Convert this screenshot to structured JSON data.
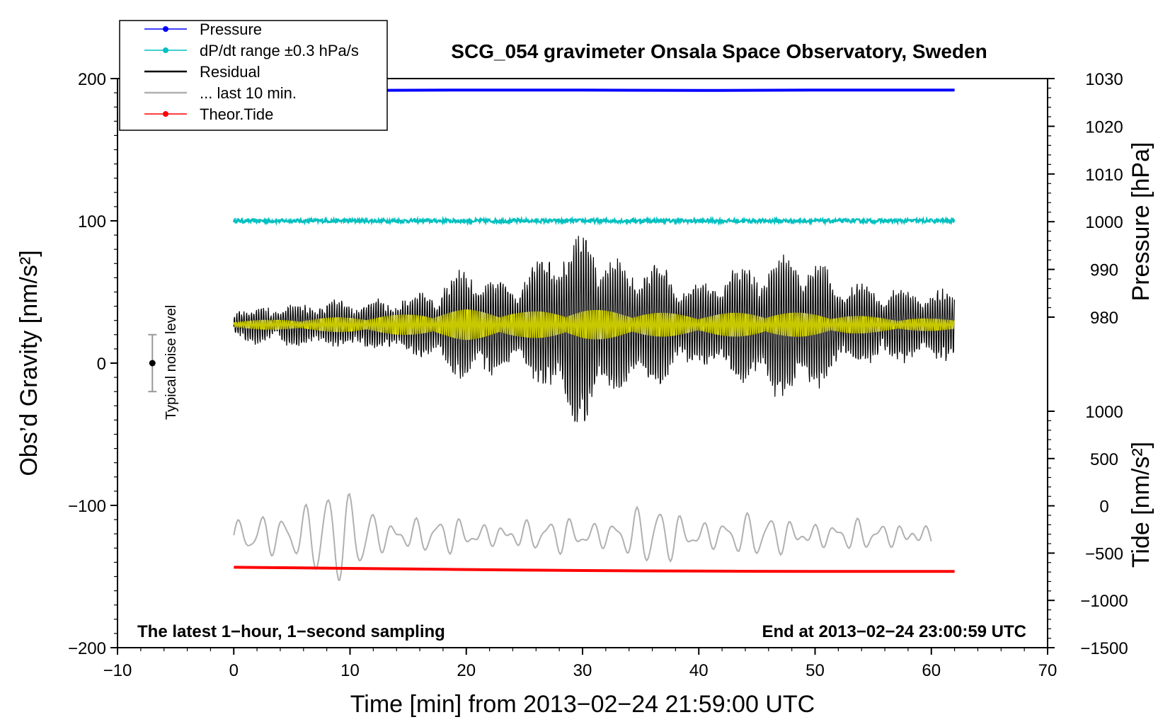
{
  "chart_data": {
    "type": "line",
    "title": "SCG_054 gravimeter Onsala Space Observatory, Sweden",
    "xlabel": "Time [min] from 2013−02−24 21:59:00 UTC",
    "ylabel_left": "Obs’d Gravity [nm/s²]",
    "ylabel_right_top": "Pressure [hPa]",
    "ylabel_right_bottom": "Tide [nm/s²]",
    "xlim": [
      -10,
      70
    ],
    "ylim_left": [
      -200,
      200
    ],
    "x_ticks": [
      "−10",
      "0",
      "10",
      "20",
      "30",
      "40",
      "50",
      "60",
      "70"
    ],
    "y_left_ticks": [
      "200",
      "100",
      "0",
      "−100",
      "−200"
    ],
    "pressure_ticks": [
      "1030",
      "1020",
      "1010",
      "1000",
      "990",
      "980"
    ],
    "pressure_range": [
      980,
      1030
    ],
    "tide_ticks": [
      "1000",
      "500",
      "0",
      "−500",
      "−1000",
      "−1500"
    ],
    "tide_range": [
      -1500,
      1000
    ],
    "note_left": "The latest 1−hour, 1−second sampling",
    "note_right": "End at 2013−02−24 23:00:59 UTC",
    "noise_label": "Typical noise level",
    "noise_bar": {
      "x": -7,
      "center": 0,
      "half_range": 20
    },
    "legend": [
      {
        "label": "Pressure",
        "color": "#0000ff",
        "marker": true
      },
      {
        "label": "dP/dt range ±0.3 hPa/s",
        "color": "#00c0c0",
        "marker": true
      },
      {
        "label": "Residual",
        "color": "#000000",
        "marker": false
      },
      {
        "label": "... last 10 min.",
        "color": "#b0b0b0",
        "marker": false
      },
      {
        "label": "Theor.Tide",
        "color": "#ff0000",
        "marker": true
      }
    ],
    "series": [
      {
        "name": "Pressure",
        "color": "#0000ff",
        "axis": "pressure_hPa",
        "x": [
          0,
          10,
          20,
          30,
          40,
          50,
          62
        ],
        "y": [
          1027.5,
          1027.5,
          1027.6,
          1027.6,
          1027.5,
          1027.6,
          1027.6
        ]
      },
      {
        "name": "dP/dt range ±0.3 hPa/s",
        "color": "#00c0c0",
        "axis": "left_nm_s2",
        "x": [
          0,
          62
        ],
        "y": [
          100,
          100
        ]
      },
      {
        "name": "Residual",
        "color": "#000000",
        "axis": "left_nm_s2",
        "baseline": 27,
        "x": [
          0,
          3,
          6,
          9,
          12,
          15,
          18,
          20,
          22,
          24,
          26,
          28,
          30,
          32,
          34,
          36,
          38,
          40,
          42,
          44,
          46,
          48,
          50,
          52,
          54,
          56,
          58,
          60,
          62
        ],
        "amplitude": [
          10,
          12,
          14,
          15,
          16,
          20,
          28,
          40,
          34,
          30,
          42,
          55,
          72,
          50,
          40,
          46,
          32,
          26,
          36,
          40,
          48,
          52,
          45,
          30,
          28,
          26,
          24,
          24,
          22
        ]
      },
      {
        "name": "Residual (fit, yellow)",
        "color": "#c8c800",
        "axis": "left_nm_s2",
        "baseline": 27,
        "x": [
          0,
          5,
          10,
          15,
          20,
          25,
          30,
          35,
          40,
          45,
          50,
          55,
          62
        ],
        "amplitude": [
          3,
          4,
          6,
          8,
          12,
          10,
          12,
          10,
          8,
          10,
          9,
          6,
          4
        ]
      },
      {
        "name": "Theor.Tide",
        "color": "#ff0000",
        "axis": "tide_nm_s2",
        "x": [
          0,
          5,
          10,
          15,
          20,
          25,
          30,
          35,
          40,
          45,
          50,
          55,
          62
        ],
        "y": [
          -650,
          -655,
          -662,
          -668,
          -674,
          -680,
          -684,
          -688,
          -690,
          -692,
          -693,
          -694,
          -694
        ]
      },
      {
        "name": "... last 10 min.",
        "color": "#b0b0b0",
        "axis": "left_nm_s2",
        "x_range": [
          0,
          60
        ],
        "baseline": -121,
        "amplitude_envelope": {
          "x": [
            0,
            2,
            5,
            8,
            11,
            14,
            17,
            20,
            23,
            26,
            29,
            32,
            35,
            38,
            41,
            44,
            47,
            50,
            53,
            56,
            60
          ],
          "a": [
            6,
            15,
            30,
            30,
            28,
            14,
            10,
            10,
            10,
            8,
            12,
            14,
            18,
            18,
            14,
            12,
            14,
            10,
            8,
            8,
            6
          ]
        }
      }
    ]
  }
}
